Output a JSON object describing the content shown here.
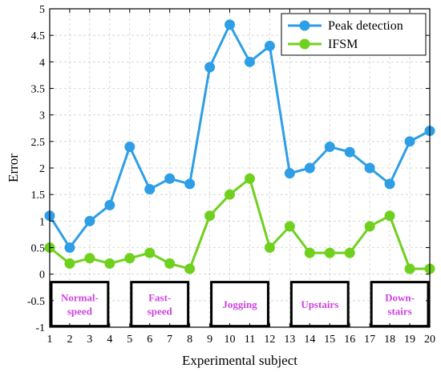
{
  "chart_data": {
    "type": "line",
    "title": "",
    "xlabel": "Experimental subject",
    "ylabel": "Error",
    "x": [
      1,
      2,
      3,
      4,
      5,
      6,
      7,
      8,
      9,
      10,
      11,
      12,
      13,
      14,
      15,
      16,
      17,
      18,
      19,
      20
    ],
    "xlim": [
      1,
      20
    ],
    "ylim": [
      -1,
      5
    ],
    "yticks": [
      -1,
      -0.5,
      0,
      0.5,
      1,
      1.5,
      2,
      2.5,
      3,
      3.5,
      4,
      4.5,
      5
    ],
    "xticks": [
      1,
      2,
      3,
      4,
      5,
      6,
      7,
      8,
      9,
      10,
      11,
      12,
      13,
      14,
      15,
      16,
      17,
      18,
      19,
      20
    ],
    "grid": true,
    "legend_position": "top-right",
    "series": [
      {
        "name": "Peak detection",
        "color": "#2e9ee6",
        "values": [
          1.1,
          0.5,
          1.0,
          1.3,
          2.4,
          1.6,
          1.8,
          1.7,
          3.9,
          4.7,
          4.0,
          4.3,
          1.9,
          2.0,
          2.4,
          2.3,
          2.0,
          1.7,
          2.5,
          2.7
        ]
      },
      {
        "name": "IFSM",
        "color": "#6fd11d",
        "values": [
          0.5,
          0.2,
          0.3,
          0.2,
          0.3,
          0.4,
          0.2,
          0.1,
          1.1,
          1.5,
          1.8,
          0.5,
          0.9,
          0.4,
          0.4,
          0.4,
          0.9,
          1.1,
          0.1,
          0.1
        ]
      }
    ],
    "annotations": [
      {
        "lines": [
          "Normal-",
          "speed"
        ],
        "x_range": [
          1,
          4
        ]
      },
      {
        "lines": [
          "Fast-",
          "speed"
        ],
        "x_range": [
          5,
          8
        ]
      },
      {
        "lines": [
          "Jogging"
        ],
        "x_range": [
          9,
          12
        ]
      },
      {
        "lines": [
          "Upstairs"
        ],
        "x_range": [
          13,
          16
        ]
      },
      {
        "lines": [
          "Down-",
          "stairs"
        ],
        "x_range": [
          17,
          20
        ]
      }
    ],
    "annotation_color": "#cc44dd"
  }
}
